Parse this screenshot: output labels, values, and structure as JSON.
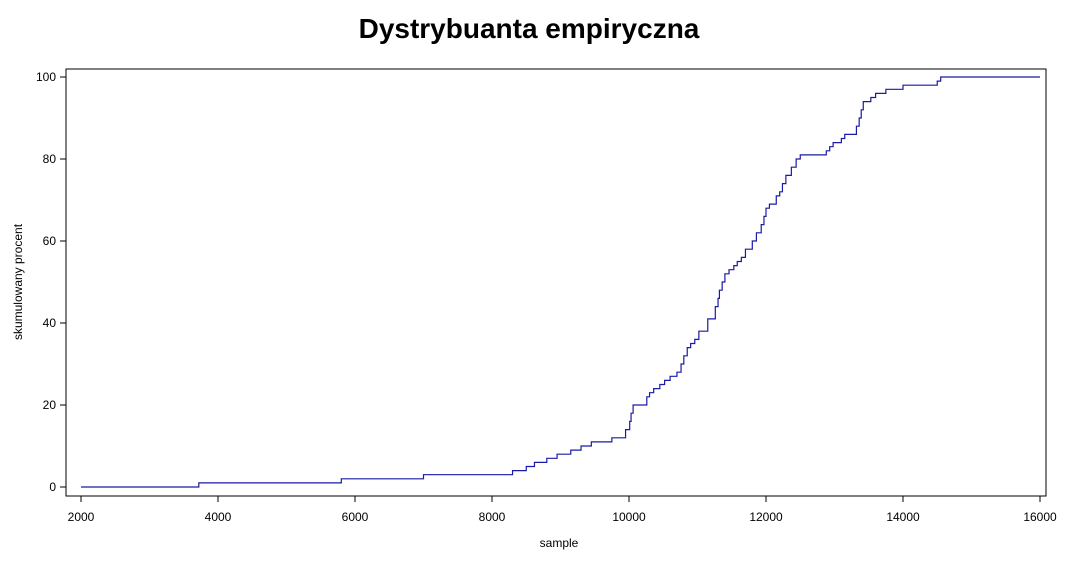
{
  "chart_data": {
    "type": "line",
    "step": true,
    "title": "Dystrybuanta empiryczna",
    "xlabel": "sample",
    "ylabel": "skumulowany procent",
    "xlim": [
      2000,
      16000
    ],
    "ylim": [
      0,
      100
    ],
    "xticks": [
      2000,
      4000,
      6000,
      8000,
      10000,
      12000,
      14000,
      16000
    ],
    "yticks": [
      0,
      20,
      40,
      60,
      80,
      100
    ],
    "xtick_labels": [
      "2000",
      "4000",
      "6000",
      "8000",
      "10000",
      "12000",
      "14000",
      "16000"
    ],
    "ytick_labels": [
      "0",
      "20",
      "40",
      "60",
      "80",
      "100"
    ],
    "grid": false,
    "line_color": "#1a1aa6",
    "series": [
      {
        "x": [
          2000,
          3720,
          5800,
          7000,
          8300,
          8500,
          8620,
          8800,
          8950,
          9150,
          9300,
          9450,
          9750,
          9950,
          10010,
          10030,
          10060,
          10260,
          10300,
          10360,
          10450,
          10520,
          10600,
          10700,
          10760,
          10800,
          10850,
          10900,
          10960,
          11020,
          11150,
          11260,
          11300,
          11320,
          11360,
          11400,
          11460,
          11530,
          11580,
          11640,
          11700,
          11800,
          11860,
          11930,
          11970,
          12000,
          12050,
          12150,
          12200,
          12240,
          12290,
          12370,
          12440,
          12500,
          12880,
          12930,
          12980,
          13100,
          13150,
          13320,
          13360,
          13390,
          13420,
          13530,
          13600,
          13750,
          14000,
          14500,
          14550,
          16000
        ],
        "y": [
          0,
          1,
          2,
          3,
          4,
          5,
          6,
          7,
          8,
          9,
          10,
          11,
          12,
          14,
          16,
          18,
          20,
          22,
          23,
          24,
          25,
          26,
          27,
          28,
          30,
          32,
          34,
          35,
          36,
          38,
          41,
          44,
          46,
          48,
          50,
          52,
          53,
          54,
          55,
          56,
          58,
          60,
          62,
          64,
          66,
          68,
          69,
          71,
          72,
          74,
          76,
          78,
          80,
          81,
          82,
          83,
          84,
          85,
          86,
          88,
          90,
          92,
          94,
          95,
          96,
          97,
          98,
          99,
          100,
          100
        ]
      }
    ]
  }
}
